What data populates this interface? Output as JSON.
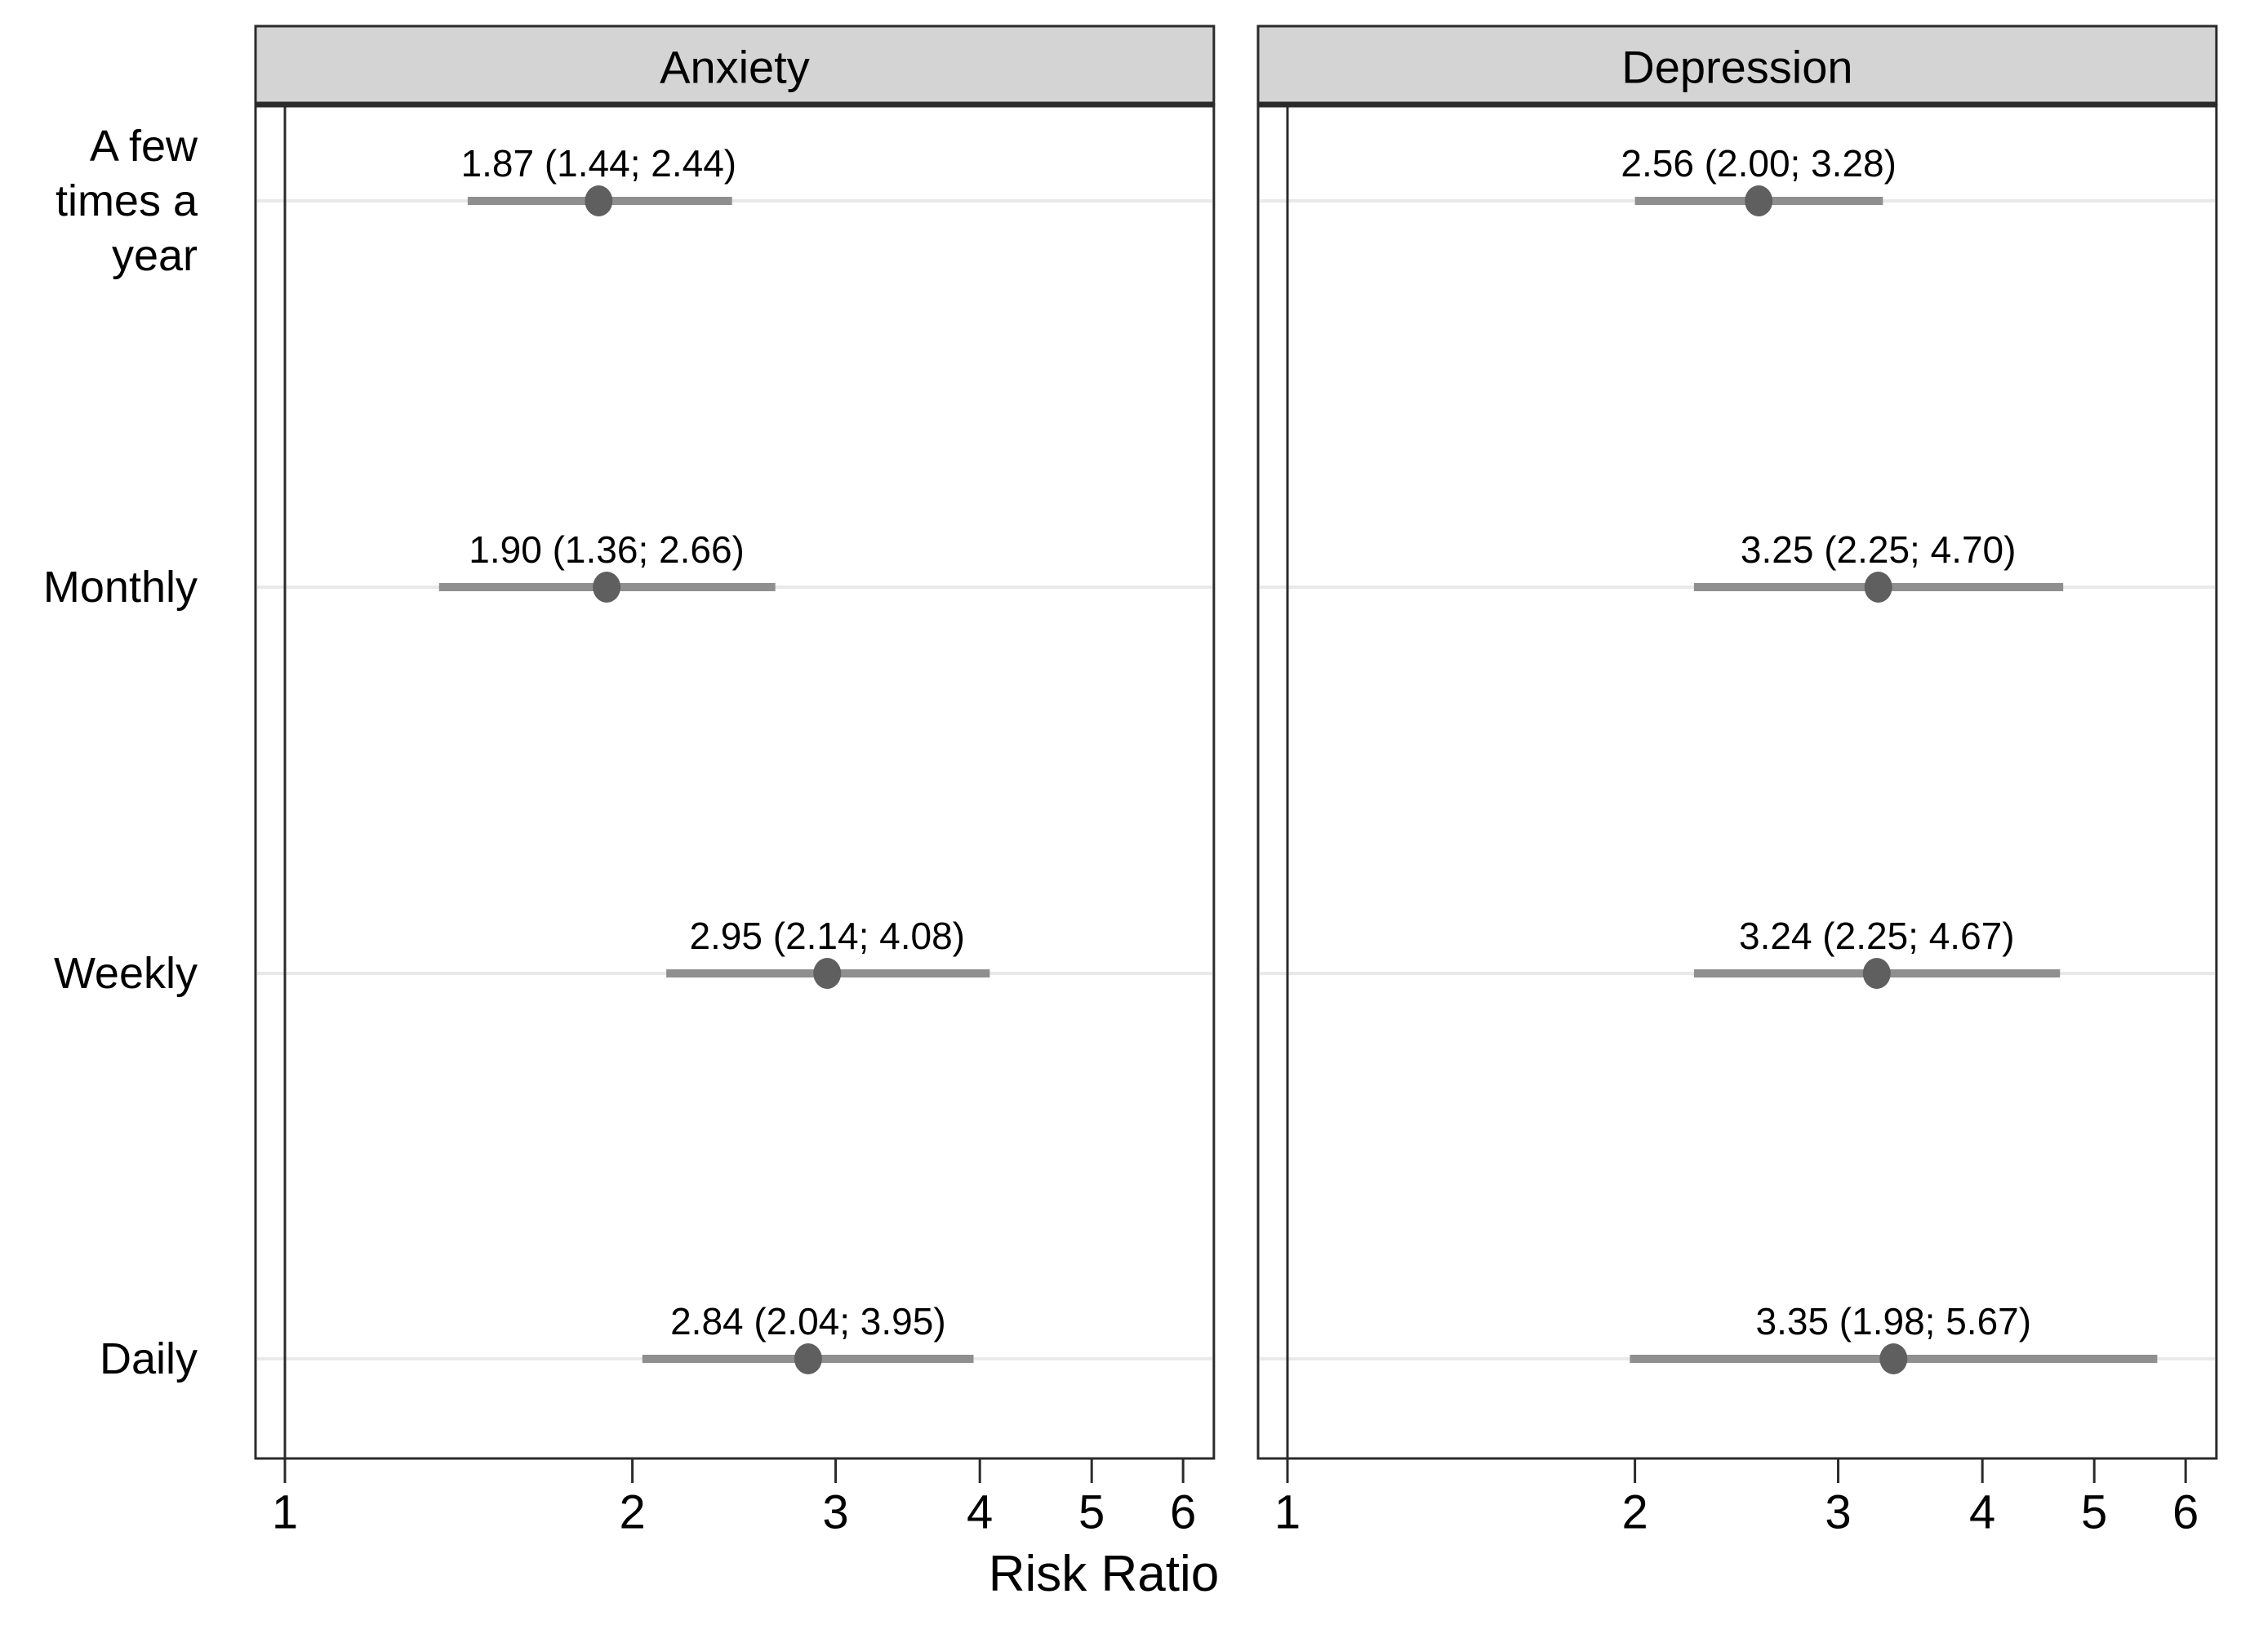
{
  "chart_data": {
    "type": "scatter",
    "subtype": "forest-plot",
    "title": "",
    "xlabel": "Risk Ratio",
    "ylabel": "",
    "x_scale": "log",
    "x_ticks": [
      1,
      2,
      3,
      4,
      5,
      6
    ],
    "x_range": [
      0.94,
      6.38
    ],
    "reference_line_x": 1,
    "grid": "light horizontal gridline per category row",
    "legend_position": "none",
    "categories": [
      "A few times a year",
      "Monthly",
      "Weekly",
      "Daily"
    ],
    "category_display_lines": [
      [
        "A few",
        "times a",
        "year"
      ],
      [
        "Monthly"
      ],
      [
        "Weekly"
      ],
      [
        "Daily"
      ]
    ],
    "panels": [
      {
        "title": "Anxiety",
        "points": [
          {
            "category": "A few times a year",
            "estimate": 1.87,
            "ci_low": 1.44,
            "ci_high": 2.44,
            "label": "1.87 (1.44; 2.44)"
          },
          {
            "category": "Monthly",
            "estimate": 1.9,
            "ci_low": 1.36,
            "ci_high": 2.66,
            "label": "1.90 (1.36; 2.66)"
          },
          {
            "category": "Weekly",
            "estimate": 2.95,
            "ci_low": 2.14,
            "ci_high": 4.08,
            "label": "2.95 (2.14; 4.08)"
          },
          {
            "category": "Daily",
            "estimate": 2.84,
            "ci_low": 2.04,
            "ci_high": 3.95,
            "label": "2.84 (2.04; 3.95)"
          }
        ]
      },
      {
        "title": "Depression",
        "points": [
          {
            "category": "A few times a year",
            "estimate": 2.56,
            "ci_low": 2.0,
            "ci_high": 3.28,
            "label": "2.56 (2.00; 3.28)"
          },
          {
            "category": "Monthly",
            "estimate": 3.25,
            "ci_low": 2.25,
            "ci_high": 4.7,
            "label": "3.25 (2.25; 4.70)"
          },
          {
            "category": "Weekly",
            "estimate": 3.24,
            "ci_low": 2.25,
            "ci_high": 4.67,
            "label": "3.24 (2.25; 4.67)"
          },
          {
            "category": "Daily",
            "estimate": 3.35,
            "ci_low": 1.98,
            "ci_high": 5.67,
            "label": "3.35 (1.98; 5.67)"
          }
        ]
      }
    ],
    "colors": {
      "background": "#ffffff",
      "header_fill": "#d4d4d4",
      "frame": "#2b2b2b",
      "reference_line": "#2b2b2b",
      "gridline": "#e9e9e9",
      "ci_line": "#8f8f8f",
      "marker": "#5f5f5f",
      "text": "#000000"
    }
  }
}
